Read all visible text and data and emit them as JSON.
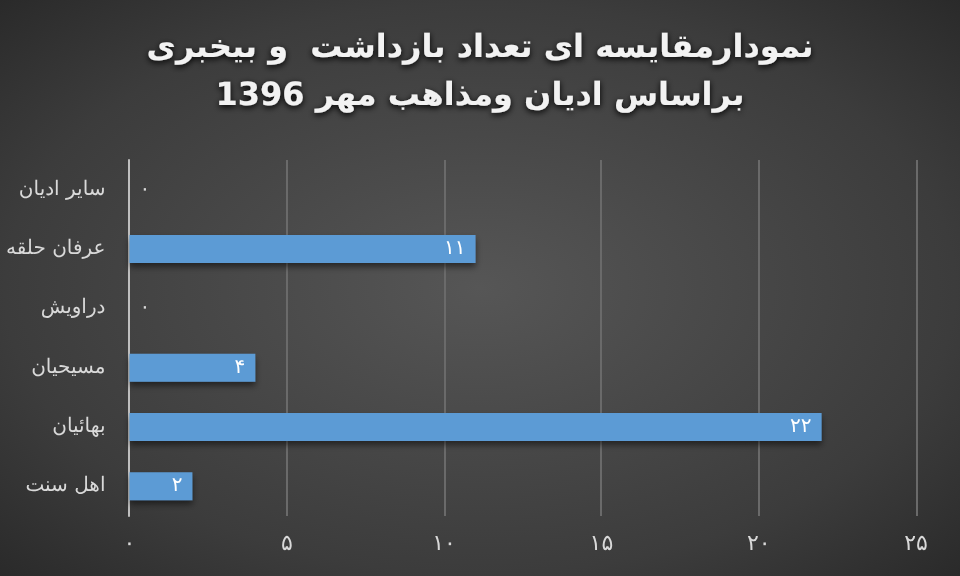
{
  "chart_data": {
    "type": "bar",
    "orientation": "horizontal",
    "title": "نمودارمقایسه ای تعداد بازداشت  و بیخبری\nبراساس ادیان ومذاهب مهر 1396",
    "categories": [
      "سایر ادیان",
      "عرفان حلقه",
      "دراویش",
      "مسیحیان",
      "بهائیان",
      "اهل سنت"
    ],
    "values": [
      0,
      11,
      0,
      4,
      22,
      2
    ],
    "value_labels": [
      "۰",
      "۱۱",
      "۰",
      "۴",
      "۲۲",
      "۲"
    ],
    "color": "#5b9bd5",
    "xlim": [
      0,
      25
    ],
    "xticks": [
      {
        "value": 0,
        "label": "۰"
      },
      {
        "value": 5,
        "label": "۵"
      },
      {
        "value": 10,
        "label": "۱۰"
      },
      {
        "value": 15,
        "label": "۱۵"
      },
      {
        "value": 20,
        "label": "۲۰"
      },
      {
        "value": 25,
        "label": "۲۵"
      }
    ],
    "grid": "x"
  }
}
